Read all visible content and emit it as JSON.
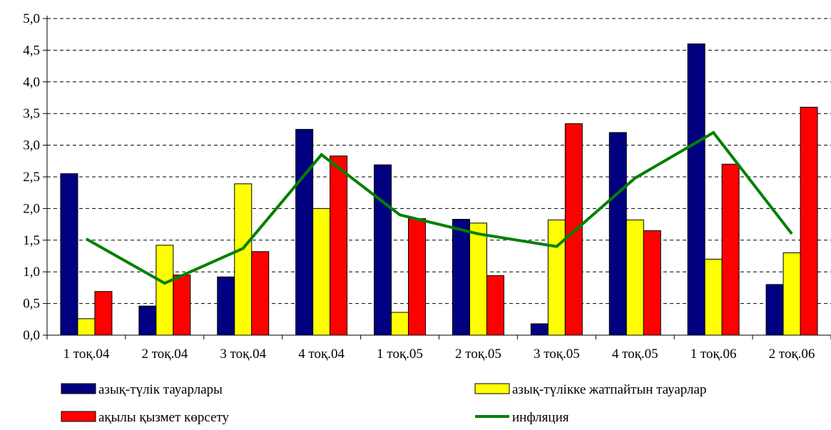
{
  "chart_data": {
    "type": "bar",
    "categories": [
      "1 тоқ.04",
      "2 тоқ.04",
      "3 тоқ.04",
      "4 тоқ.04",
      "1 тоқ.05",
      "2 тоқ.05",
      "3 тоқ.05",
      "4 тоқ.05",
      "1 тоқ.06",
      "2 тоқ.06"
    ],
    "series": [
      {
        "name": "азық-түлік тауарлары",
        "kind": "bar",
        "color": "#000080",
        "values": [
          2.55,
          0.46,
          0.92,
          3.25,
          2.69,
          1.83,
          0.18,
          3.2,
          4.6,
          0.8
        ]
      },
      {
        "name": "азық-түлікке жатпайтын тауарлар",
        "kind": "bar",
        "color": "#FFFF00",
        "values": [
          0.26,
          1.42,
          2.39,
          2.0,
          0.36,
          1.77,
          1.82,
          1.82,
          1.2,
          1.3
        ]
      },
      {
        "name": "ақылы қызмет көрсету",
        "kind": "bar",
        "color": "#FF0000",
        "values": [
          0.69,
          0.95,
          1.32,
          2.83,
          1.84,
          0.94,
          3.34,
          1.65,
          2.7,
          3.6
        ]
      },
      {
        "name": "инфляция",
        "kind": "line",
        "color": "#008000",
        "values": [
          1.52,
          0.82,
          1.37,
          2.85,
          1.9,
          1.6,
          1.4,
          2.48,
          3.2,
          1.6
        ]
      }
    ],
    "yticks": [
      "0,0",
      "0,5",
      "1,0",
      "1,5",
      "2,0",
      "2,5",
      "3,0",
      "3,5",
      "4,0",
      "4,5",
      "5,0"
    ],
    "ylim": [
      0,
      5
    ],
    "grid": "horizontal-dashed",
    "legend_position": "bottom"
  }
}
